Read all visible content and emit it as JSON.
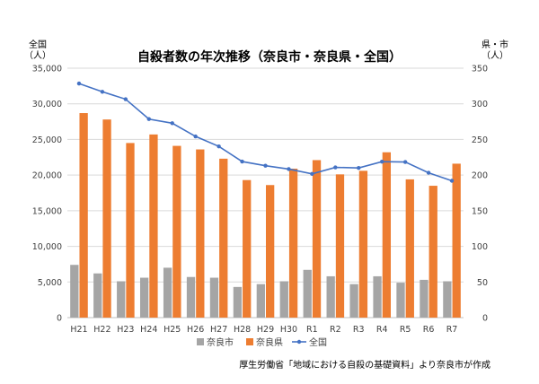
{
  "chart_data": {
    "type": "bar",
    "title": "自殺者数の年次推移（奈良市・奈良県・全国）",
    "left_axis_label_line1": "全国",
    "left_axis_label_line2": "（人）",
    "right_axis_label_line1": "県・市",
    "right_axis_label_line2": "（人）",
    "categories": [
      "H21",
      "H22",
      "H23",
      "H24",
      "H25",
      "H26",
      "H27",
      "H28",
      "H29",
      "H30",
      "R1",
      "R2",
      "R3",
      "R4",
      "R5",
      "R6",
      "R7"
    ],
    "left_ylim": [
      0,
      35000
    ],
    "left_ticks": [
      "0",
      "5,000",
      "10,000",
      "15,000",
      "20,000",
      "25,000",
      "30,000",
      "35,000"
    ],
    "right_ylim": [
      0,
      350
    ],
    "right_ticks": [
      "0",
      "50",
      "100",
      "150",
      "200",
      "250",
      "300",
      "350"
    ],
    "series": [
      {
        "name": "奈良市",
        "kind": "bar",
        "axis": "right",
        "color": "#a5a5a5",
        "values": [
          74,
          62,
          51,
          56,
          70,
          57,
          56,
          43,
          47,
          51,
          67,
          58,
          47,
          58,
          49,
          53,
          51
        ]
      },
      {
        "name": "奈良県",
        "kind": "bar",
        "axis": "right",
        "color": "#ed7d31",
        "values": [
          287,
          278,
          245,
          257,
          241,
          236,
          223,
          193,
          186,
          209,
          221,
          201,
          206,
          232,
          194,
          185,
          216
        ]
      },
      {
        "name": "全国",
        "kind": "line",
        "axis": "left",
        "color": "#4472c4",
        "values": [
          32845,
          31690,
          30651,
          27858,
          27283,
          25427,
          24025,
          21897,
          21321,
          20840,
          20169,
          21081,
          21007,
          21881,
          21837,
          20320,
          19200
        ]
      }
    ],
    "grid": true,
    "legend_position": "bottom",
    "source_note": "厚生労働省「地域における自殺の基礎資料」より奈良市が作成"
  }
}
